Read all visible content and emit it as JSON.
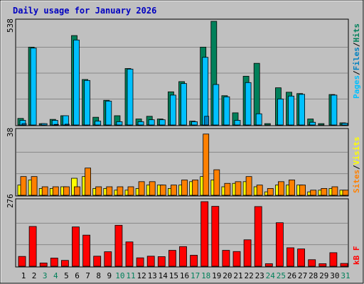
{
  "title": "Daily usage for January 2026",
  "colors": {
    "background": "#c0c0c0",
    "title": "#0000c0",
    "hits": "#00805a",
    "files": "#00c0ff",
    "pages": "#00c0ff",
    "sites": "#ff8000",
    "visits": "#ffff00",
    "kbytes": "#ff0000",
    "grid": "#888888"
  },
  "chart_data": [
    {
      "type": "bar",
      "name": "hits-files-pages",
      "ymax": 538,
      "ymax_label": "538",
      "legend": [
        "Pages",
        "Files",
        "Hits"
      ],
      "categories": [
        "1",
        "2",
        "3",
        "4",
        "5",
        "6",
        "7",
        "8",
        "9",
        "10",
        "11",
        "12",
        "13",
        "14",
        "15",
        "16",
        "17",
        "18",
        "19",
        "20",
        "21",
        "22",
        "23",
        "24",
        "25",
        "26",
        "27",
        "28",
        "29",
        "30",
        "31"
      ],
      "series": [
        {
          "name": "Hits",
          "values": [
            34,
            404,
            7,
            29,
            48,
            464,
            236,
            40,
            128,
            48,
            293,
            31,
            45,
            31,
            172,
            225,
            20,
            404,
            538,
            152,
            63,
            253,
            320,
            7,
            193,
            170,
            163,
            31,
            7,
            158,
            11
          ]
        },
        {
          "name": "Files",
          "values": [
            24,
            399,
            7,
            24,
            48,
            441,
            231,
            20,
            124,
            17,
            290,
            17,
            27,
            27,
            155,
            215,
            17,
            351,
            210,
            146,
            24,
            220,
            58,
            0,
            135,
            150,
            159,
            14,
            0,
            155,
            9
          ]
        },
        {
          "name": "Pages",
          "values": [
            7,
            0,
            0,
            3,
            4,
            0,
            0,
            0,
            0,
            0,
            0,
            0,
            0,
            0,
            0,
            0,
            0,
            45,
            0,
            0,
            0,
            0,
            0,
            0,
            0,
            0,
            0,
            0,
            0,
            0,
            0
          ]
        }
      ]
    },
    {
      "type": "bar",
      "name": "sites-visits",
      "ymax": 38,
      "ymax_label": "38",
      "legend": [
        "Sites",
        "Visits"
      ],
      "categories": [
        "1",
        "2",
        "3",
        "4",
        "5",
        "6",
        "7",
        "8",
        "9",
        "10",
        "11",
        "12",
        "13",
        "14",
        "15",
        "16",
        "17",
        "18",
        "19",
        "20",
        "21",
        "22",
        "23",
        "24",
        "25",
        "26",
        "27",
        "28",
        "29",
        "30",
        "31"
      ],
      "series": [
        {
          "name": "Visits",
          "values": [
            6,
            9,
            4,
            4,
            5,
            10,
            11,
            4,
            4,
            3,
            3,
            4,
            6,
            6,
            4,
            6,
            8,
            11,
            9,
            5,
            7,
            8,
            5,
            2,
            6,
            6,
            6,
            2,
            3,
            4,
            3
          ]
        },
        {
          "name": "Sites",
          "values": [
            11,
            11,
            5,
            5,
            5,
            5,
            16,
            5,
            5,
            5,
            5,
            8,
            8,
            6,
            6,
            9,
            9,
            36,
            15,
            7,
            8,
            11,
            6,
            4,
            8,
            9,
            6,
            3,
            4,
            5,
            3
          ]
        }
      ]
    },
    {
      "type": "bar",
      "name": "kbytes",
      "ymax": 276,
      "ymax_label": "276",
      "legend": [
        "kB F"
      ],
      "categories": [
        "1",
        "2",
        "3",
        "4",
        "5",
        "6",
        "7",
        "8",
        "9",
        "10",
        "11",
        "12",
        "13",
        "14",
        "15",
        "16",
        "17",
        "18",
        "19",
        "20",
        "21",
        "22",
        "23",
        "24",
        "25",
        "26",
        "27",
        "28",
        "29",
        "30",
        "31"
      ],
      "series": [
        {
          "name": "kB F",
          "values": [
            42,
            170,
            14,
            35,
            25,
            168,
            133,
            43,
            62,
            175,
            104,
            36,
            43,
            41,
            68,
            84,
            47,
            276,
            256,
            68,
            63,
            113,
            255,
            11,
            186,
            79,
            74,
            28,
            11,
            58,
            12
          ]
        }
      ]
    }
  ],
  "x_labels": [
    "1",
    "2",
    "3",
    "4",
    "5",
    "6",
    "7",
    "8",
    "9",
    "10",
    "11",
    "12",
    "13",
    "14",
    "15",
    "16",
    "17",
    "18",
    "19",
    "20",
    "21",
    "22",
    "23",
    "24",
    "25",
    "26",
    "27",
    "28",
    "29",
    "30",
    "31"
  ],
  "weekend_days": [
    "3",
    "4",
    "10",
    "11",
    "17",
    "18",
    "24",
    "25",
    "31"
  ]
}
